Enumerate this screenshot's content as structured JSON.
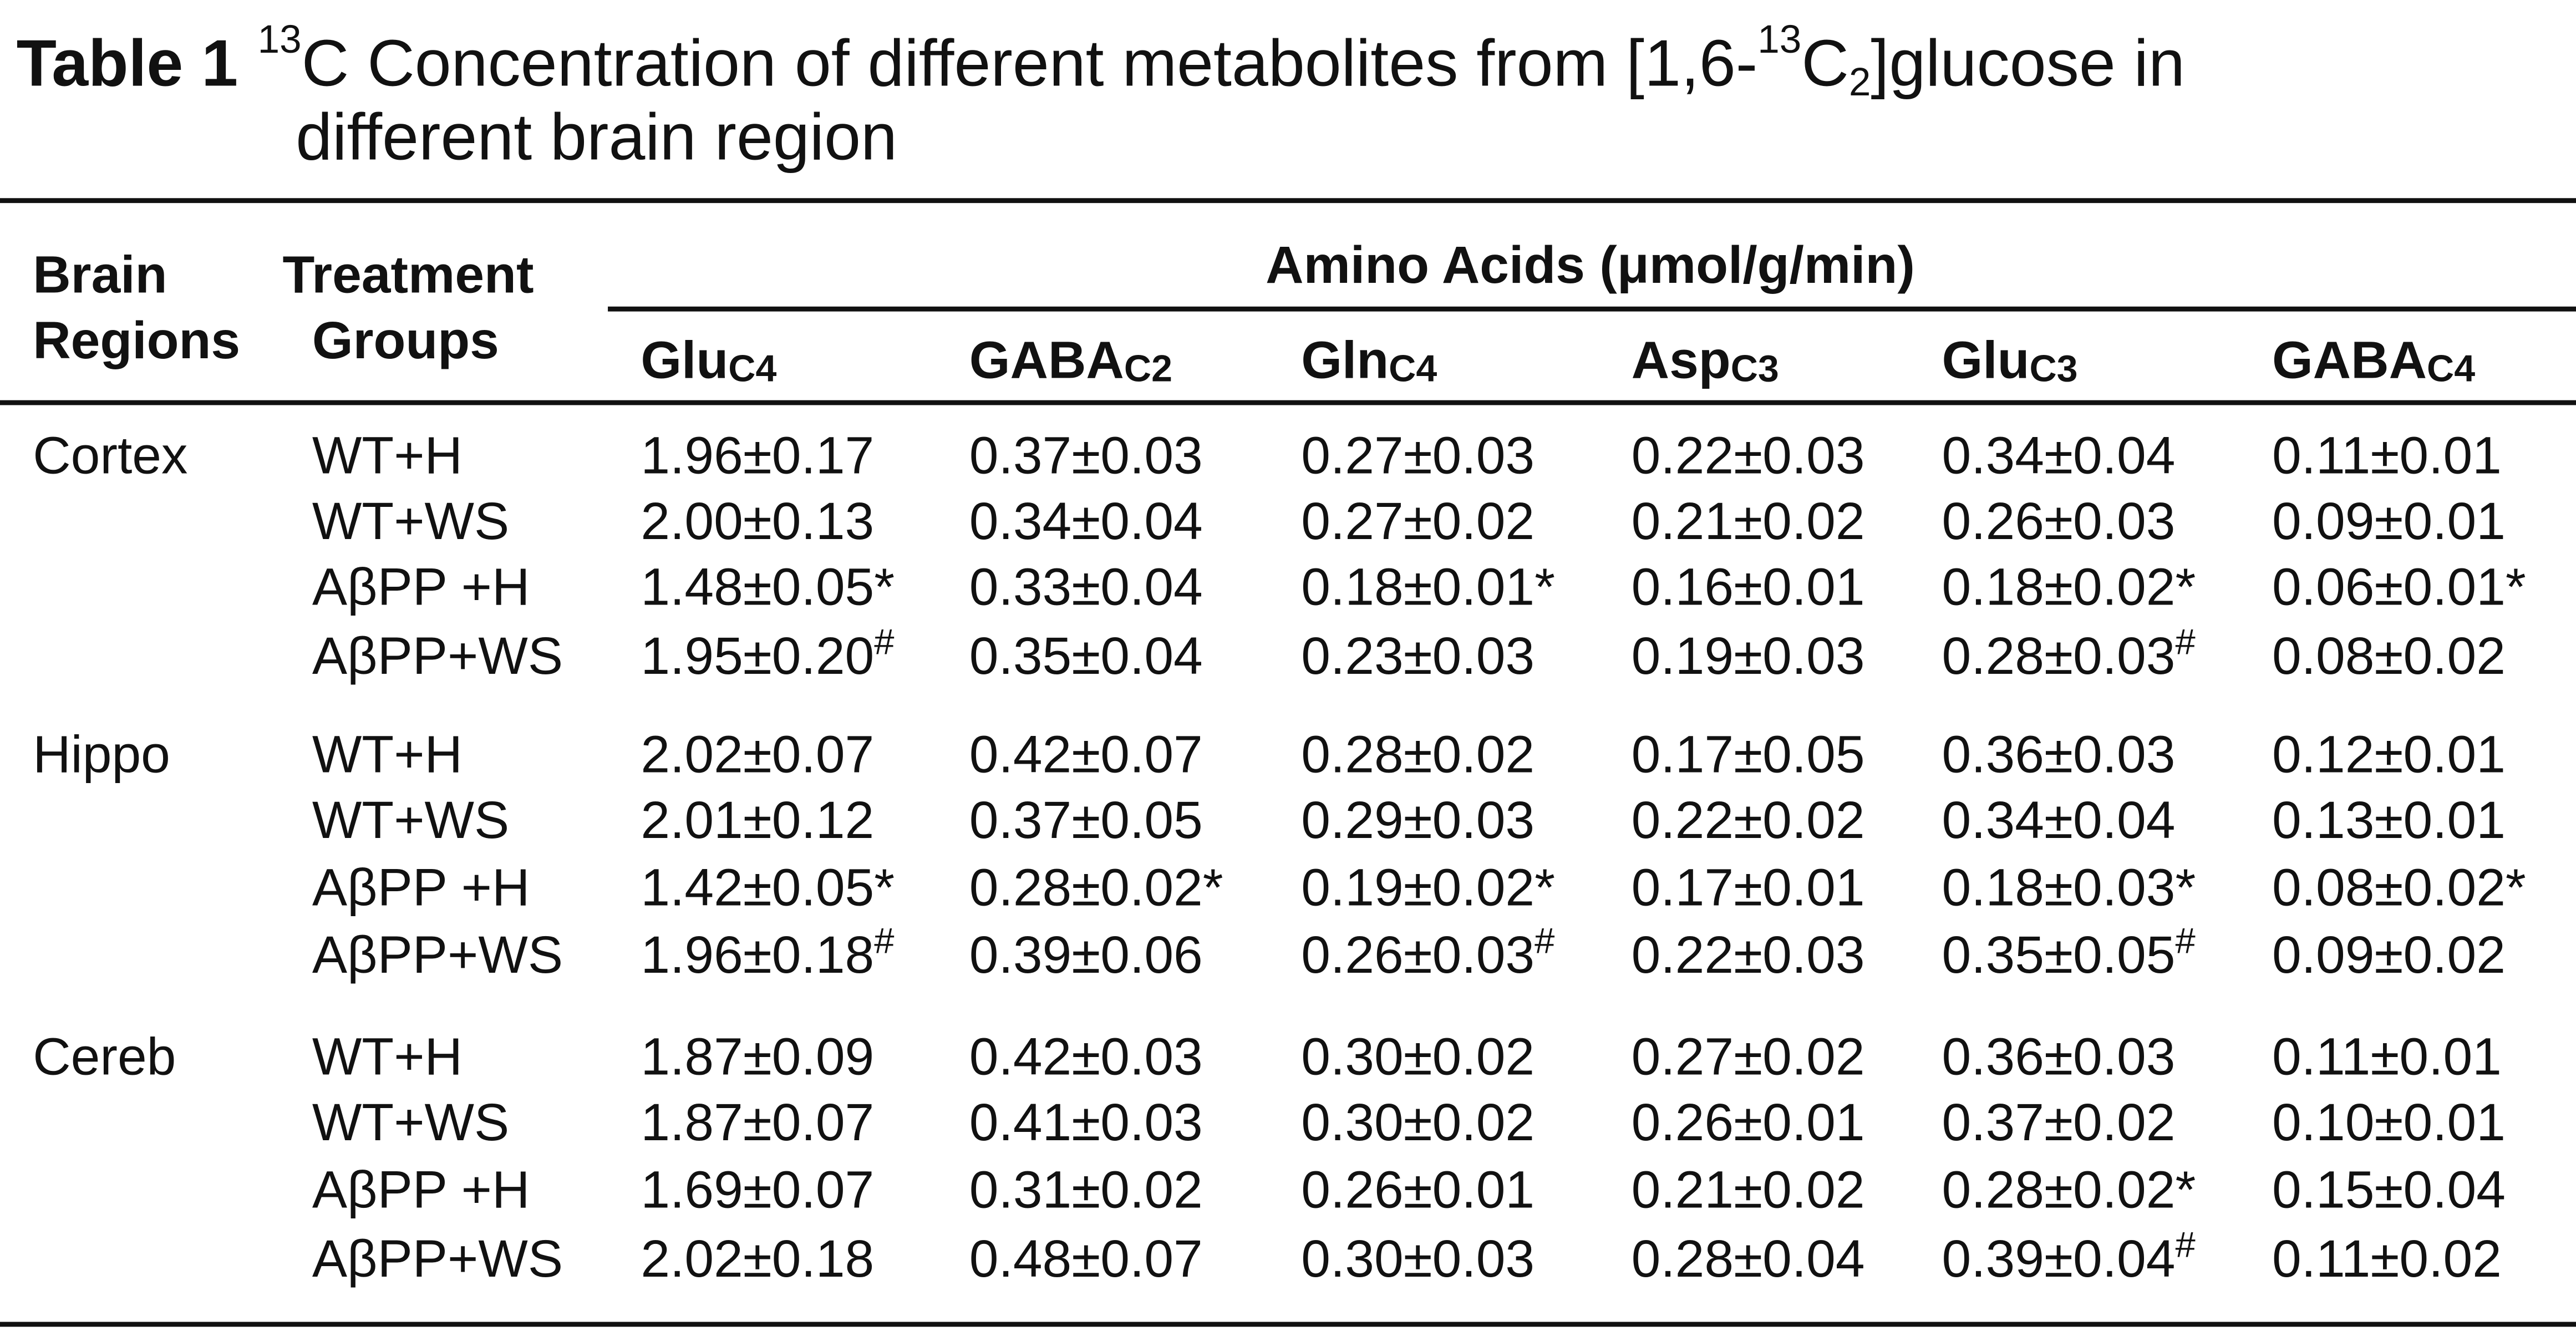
{
  "title": {
    "label": "Table 1",
    "sup1": "13",
    "text1": "C Concentration of different metabolites from [1,6-",
    "sup2": "13",
    "text2": "C",
    "sub": "2",
    "text3": "]glucose in",
    "line2": "different brain region"
  },
  "header": {
    "region": [
      "Brain",
      "Regions"
    ],
    "group": [
      "Treatment",
      "Groups"
    ],
    "span": "Amino Acids (μmol/g/min)",
    "columns": [
      {
        "name": "Glu",
        "sub": "C4"
      },
      {
        "name": "GABA",
        "sub": "C2"
      },
      {
        "name": "Gln",
        "sub": "C4"
      },
      {
        "name": "Asp",
        "sub": "C3"
      },
      {
        "name": "Glu",
        "sub": "C3"
      },
      {
        "name": "GABA",
        "sub": "C4"
      }
    ]
  },
  "table": {
    "sections": [
      {
        "region": "Cortex",
        "rows": [
          {
            "group": "WT+H",
            "cells": [
              "1.96±0.17",
              "0.37±0.03",
              "0.27±0.03",
              "0.22±0.03",
              "0.34±0.04",
              "0.11±0.01"
            ]
          },
          {
            "group": "WT+WS",
            "cells": [
              "2.00±0.13",
              "0.34±0.04",
              "0.27±0.02",
              "0.21±0.02",
              "0.26±0.03",
              "0.09±0.01"
            ]
          },
          {
            "group": "AβPP +H",
            "cells": [
              "1.48±0.05*",
              "0.33±0.04",
              "0.18±0.01*",
              "0.16±0.01",
              "0.18±0.02*",
              "0.06±0.01*"
            ]
          },
          {
            "group": "AβPP+WS",
            "cells": [
              {
                "value": "1.95±0.20",
                "sup": "#"
              },
              "0.35±0.04",
              "0.23±0.03",
              "0.19±0.03",
              {
                "value": "0.28±0.03",
                "sup": "#"
              },
              "0.08±0.02"
            ]
          }
        ]
      },
      {
        "region": "Hippo",
        "rows": [
          {
            "group": "WT+H",
            "cells": [
              "2.02±0.07",
              "0.42±0.07",
              "0.28±0.02",
              "0.17±0.05",
              "0.36±0.03",
              "0.12±0.01"
            ]
          },
          {
            "group": "WT+WS",
            "cells": [
              "2.01±0.12",
              "0.37±0.05",
              "0.29±0.03",
              "0.22±0.02",
              "0.34±0.04",
              "0.13±0.01"
            ]
          },
          {
            "group": "AβPP +H",
            "cells": [
              "1.42±0.05*",
              "0.28±0.02*",
              "0.19±0.02*",
              "0.17±0.01",
              "0.18±0.03*",
              "0.08±0.02*"
            ]
          },
          {
            "group": "AβPP+WS",
            "cells": [
              {
                "value": "1.96±0.18",
                "sup": "#"
              },
              "0.39±0.06",
              {
                "value": "0.26±0.03",
                "sup": "#"
              },
              "0.22±0.03",
              {
                "value": "0.35±0.05",
                "sup": "#"
              },
              "0.09±0.02"
            ]
          }
        ]
      },
      {
        "region": "Cereb",
        "rows": [
          {
            "group": "WT+H",
            "cells": [
              "1.87±0.09",
              "0.42±0.03",
              "0.30±0.02",
              "0.27±0.02",
              "0.36±0.03",
              "0.11±0.01"
            ]
          },
          {
            "group": "WT+WS",
            "cells": [
              "1.87±0.07",
              "0.41±0.03",
              "0.30±0.02",
              "0.26±0.01",
              "0.37±0.02",
              "0.10±0.01"
            ]
          },
          {
            "group": "AβPP +H",
            "cells": [
              "1.69±0.07",
              "0.31±0.02",
              "0.26±0.01",
              "0.21±0.02",
              "0.28±0.02*",
              "0.15±0.04"
            ]
          },
          {
            "group": "AβPP+WS",
            "cells": [
              "2.02±0.18",
              "0.48±0.07",
              "0.30±0.03",
              "0.28±0.04",
              {
                "value": "0.39±0.04",
                "sup": "#"
              },
              "0.11±0.02"
            ]
          }
        ]
      }
    ]
  }
}
